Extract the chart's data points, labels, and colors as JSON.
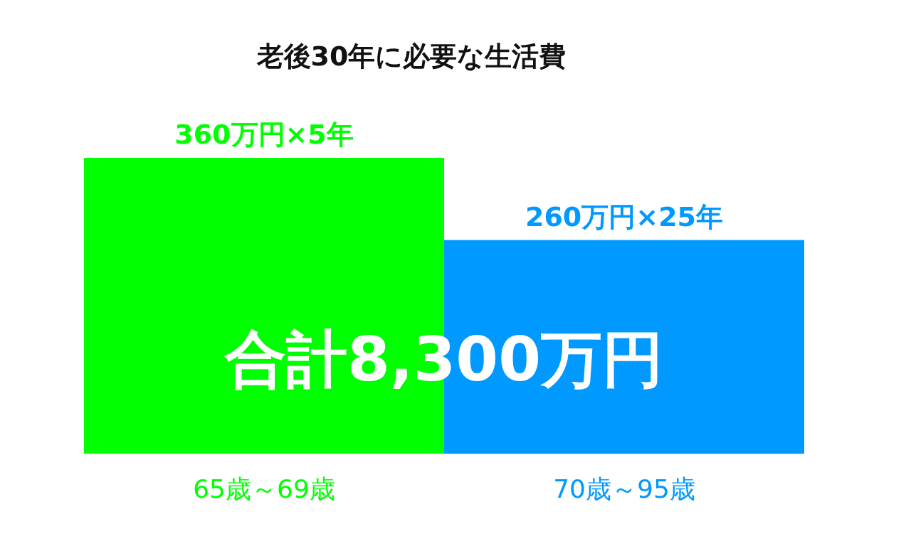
{
  "chart_data": {
    "type": "bar",
    "title": "老後30年に必要な生活費",
    "categories": [
      "65歳～69歳",
      "70歳～95歳"
    ],
    "values": [
      360,
      260
    ],
    "colors": [
      "#00ff00",
      "#0099ff"
    ],
    "value_labels": [
      "360万円×5年",
      "260万円×25年"
    ],
    "annotations": [
      "合計8,300万円"
    ]
  }
}
